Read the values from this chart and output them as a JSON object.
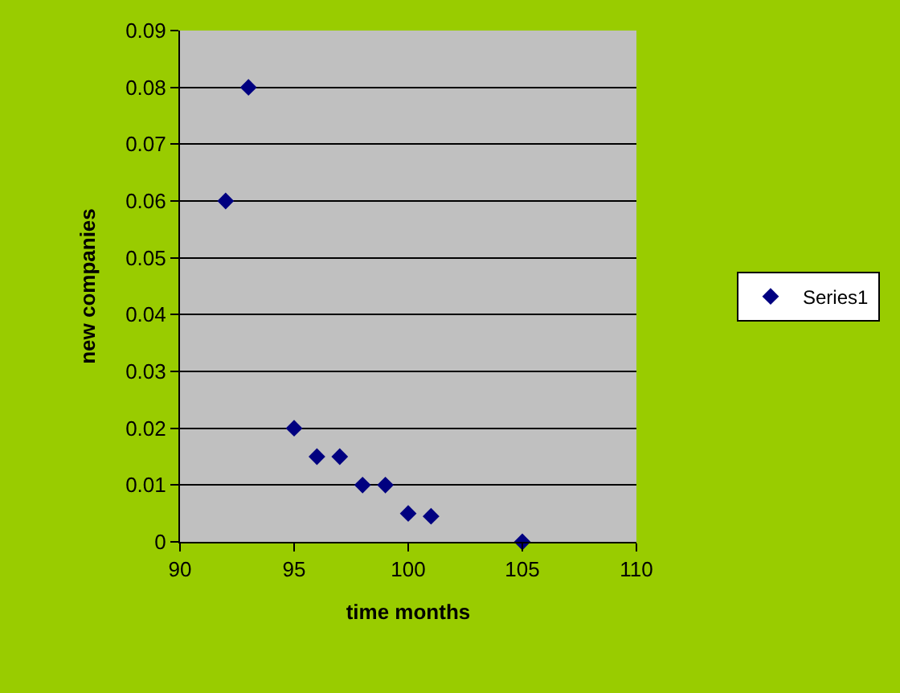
{
  "chart_data": {
    "type": "scatter",
    "xlabel": "time months",
    "ylabel": "new companies",
    "x": [
      92,
      93,
      95,
      96,
      97,
      98,
      99,
      100,
      101,
      105
    ],
    "series": [
      {
        "name": "Series1",
        "color": "#000080",
        "values": [
          0.06,
          0.08,
          0.02,
          0.015,
          0.015,
          0.01,
          0.01,
          0.005,
          0.0045,
          0
        ]
      }
    ],
    "xlim": [
      90,
      110
    ],
    "xticks": [
      90,
      95,
      100,
      105,
      110
    ],
    "ylim": [
      0,
      0.09
    ],
    "yticks": [
      0,
      0.01,
      0.02,
      0.03,
      0.04,
      0.05,
      0.06,
      0.07,
      0.08,
      0.09
    ],
    "grid": "y",
    "legend": "right",
    "marker": "diamond"
  }
}
